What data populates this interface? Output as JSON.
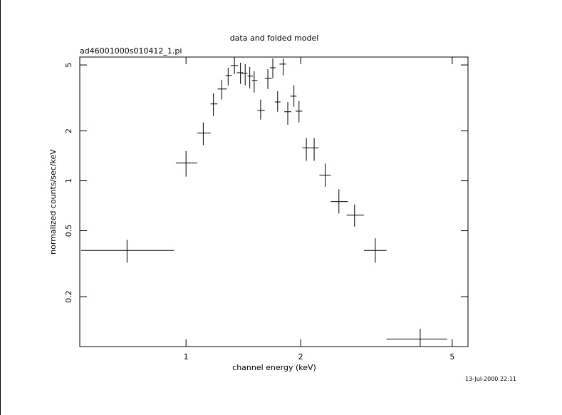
{
  "chart_data": {
    "type": "errorbar",
    "title": "data and folded model",
    "subtitle": "ad46001000s010412_1.pi",
    "xlabel": "channel energy (keV)",
    "ylabel": "normalized counts/sec/keV",
    "timestamp": "13-Jul-2000 22:11",
    "xlog": true,
    "ylog": true,
    "color": "#000000",
    "xlim": [
      0.526,
      5.5
    ],
    "ylim": [
      0.1,
      5.58
    ],
    "xticks": [
      1,
      2,
      5
    ],
    "yticks": [
      0.2,
      0.5,
      1,
      2,
      5
    ],
    "x": [
      0.7,
      1.0,
      1.11,
      1.18,
      1.24,
      1.29,
      1.34,
      1.39,
      1.43,
      1.47,
      1.51,
      1.57,
      1.64,
      1.69,
      1.74,
      1.8,
      1.85,
      1.92,
      1.98,
      2.07,
      2.17,
      2.32,
      2.52,
      2.77,
      3.14,
      4.12
    ],
    "x_min": [
      0.53,
      0.94,
      1.07,
      1.16,
      1.21,
      1.27,
      1.31,
      1.36,
      1.4,
      1.45,
      1.49,
      1.54,
      1.61,
      1.66,
      1.71,
      1.76,
      1.81,
      1.88,
      1.94,
      2.02,
      2.12,
      2.24,
      2.4,
      2.64,
      2.93,
      3.36
    ],
    "x_max": [
      0.93,
      1.07,
      1.16,
      1.21,
      1.28,
      1.32,
      1.37,
      1.41,
      1.45,
      1.5,
      1.54,
      1.61,
      1.68,
      1.72,
      1.77,
      1.83,
      1.89,
      1.95,
      2.02,
      2.12,
      2.23,
      2.4,
      2.66,
      2.93,
      3.36,
      4.85
    ],
    "values": [
      0.38,
      1.28,
      1.94,
      2.91,
      3.58,
      4.32,
      4.96,
      4.49,
      4.45,
      4.28,
      4.03,
      2.66,
      4.15,
      4.81,
      2.99,
      5.06,
      2.61,
      3.24,
      2.63,
      1.58,
      1.58,
      1.08,
      0.75,
      0.62,
      0.38,
      0.111
    ],
    "y_min": [
      0.32,
      1.06,
      1.64,
      2.46,
      3.09,
      3.76,
      4.4,
      3.84,
      3.76,
      3.61,
      3.41,
      2.34,
      3.58,
      4.15,
      2.61,
      4.32,
      2.18,
      2.8,
      2.25,
      1.32,
      1.32,
      0.92,
      0.635,
      0.53,
      0.32,
      0.1
    ],
    "y_max": [
      0.44,
      1.51,
      2.25,
      3.37,
      4.07,
      4.81,
      5.58,
      5.16,
      5.06,
      4.86,
      4.58,
      3.09,
      4.71,
      5.47,
      3.47,
      5.47,
      2.99,
      3.76,
      3.03,
      1.81,
      1.81,
      1.27,
      0.89,
      0.72,
      0.45,
      0.128
    ]
  }
}
